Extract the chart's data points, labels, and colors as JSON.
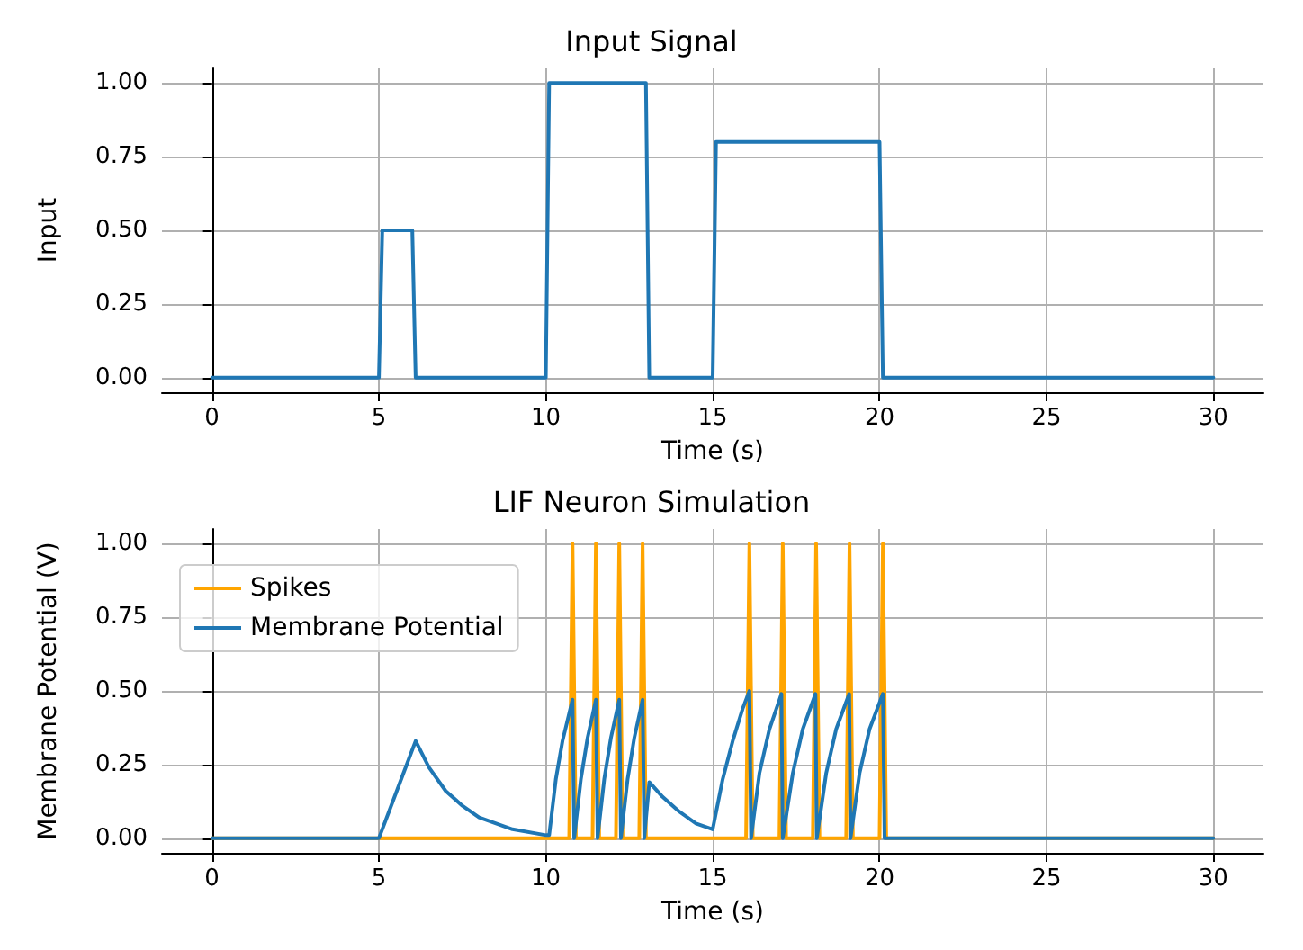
{
  "chart_data": [
    {
      "type": "line",
      "title": "Input Signal",
      "xlabel": "Time (s)",
      "ylabel": "Input",
      "x": [
        0,
        5,
        5.1,
        6,
        6.1,
        10,
        10.1,
        13,
        13.1,
        15,
        15.1,
        20,
        20.1,
        30
      ],
      "series": [
        {
          "color": "#1f77b4",
          "values": [
            0,
            0,
            0.5,
            0.5,
            0,
            0,
            1,
            1,
            0,
            0,
            0.8,
            0.8,
            0,
            0
          ]
        }
      ],
      "xlim": [
        -1.5,
        31.5
      ],
      "xticks": [
        0,
        5,
        10,
        15,
        20,
        25,
        30
      ],
      "ylim": [
        -0.05,
        1.05
      ],
      "yticks": [
        {
          "value": 0,
          "label": "0.00"
        },
        {
          "value": 0.25,
          "label": "0.25"
        },
        {
          "value": 0.5,
          "label": "0.50"
        },
        {
          "value": 0.75,
          "label": "0.75"
        },
        {
          "value": 1,
          "label": "1.00"
        }
      ],
      "grid": true,
      "legend": false
    },
    {
      "type": "line",
      "title": "LIF Neuron Simulation",
      "xlabel": "Time (s)",
      "ylabel": "Membrane Potential (V)",
      "series": [
        {
          "name": "Spikes",
          "color": "#ffa500",
          "x": [
            0,
            10.7,
            10.8,
            10.9,
            11.4,
            11.5,
            11.6,
            12.1,
            12.2,
            12.3,
            12.8,
            12.9,
            13.0,
            16.0,
            16.1,
            16.2,
            17.0,
            17.1,
            17.2,
            18.0,
            18.1,
            18.2,
            19.0,
            19.1,
            19.2,
            20.0,
            20.1,
            20.2,
            30
          ],
          "values": [
            0,
            0,
            1,
            0,
            0,
            1,
            0,
            0,
            1,
            0,
            0,
            1,
            0,
            0,
            1,
            0,
            0,
            1,
            0,
            0,
            1,
            0,
            0,
            1,
            0,
            0,
            1,
            0,
            0
          ]
        },
        {
          "name": "Membrane Potential",
          "color": "#1f77b4",
          "x": [
            0,
            5,
            5.3,
            5.6,
            5.9,
            6.1,
            6.5,
            7,
            7.5,
            8,
            9,
            10,
            10.1,
            10.3,
            10.5,
            10.8,
            10.85,
            11.05,
            11.25,
            11.5,
            11.55,
            11.75,
            11.95,
            12.2,
            12.25,
            12.45,
            12.65,
            12.9,
            12.95,
            13.1,
            13.5,
            14,
            14.5,
            15,
            15.3,
            15.6,
            15.9,
            16.1,
            16.15,
            16.4,
            16.7,
            17.06,
            17.1,
            17.4,
            17.7,
            18.08,
            18.12,
            18.4,
            18.7,
            19.09,
            19.13,
            19.4,
            19.7,
            20.1,
            20.15,
            30
          ],
          "values": [
            0,
            0,
            0.09,
            0.18,
            0.27,
            0.33,
            0.24,
            0.16,
            0.11,
            0.07,
            0.03,
            0.01,
            0.01,
            0.2,
            0.33,
            0.47,
            0,
            0.2,
            0.34,
            0.47,
            0,
            0.2,
            0.34,
            0.47,
            0,
            0.2,
            0.34,
            0.47,
            0,
            0.19,
            0.14,
            0.09,
            0.05,
            0.03,
            0.2,
            0.33,
            0.44,
            0.5,
            0,
            0.22,
            0.37,
            0.49,
            0,
            0.22,
            0.37,
            0.49,
            0,
            0.22,
            0.37,
            0.49,
            0,
            0.22,
            0.37,
            0.49,
            0,
            0
          ]
        }
      ],
      "xlim": [
        -1.5,
        31.5
      ],
      "xticks": [
        0,
        5,
        10,
        15,
        20,
        25,
        30
      ],
      "ylim": [
        -0.05,
        1.05
      ],
      "yticks": [
        {
          "value": 0,
          "label": "0.00"
        },
        {
          "value": 0.25,
          "label": "0.25"
        },
        {
          "value": 0.5,
          "label": "0.50"
        },
        {
          "value": 0.75,
          "label": "0.75"
        },
        {
          "value": 1,
          "label": "1.00"
        }
      ],
      "grid": true,
      "legend": "top left"
    }
  ]
}
